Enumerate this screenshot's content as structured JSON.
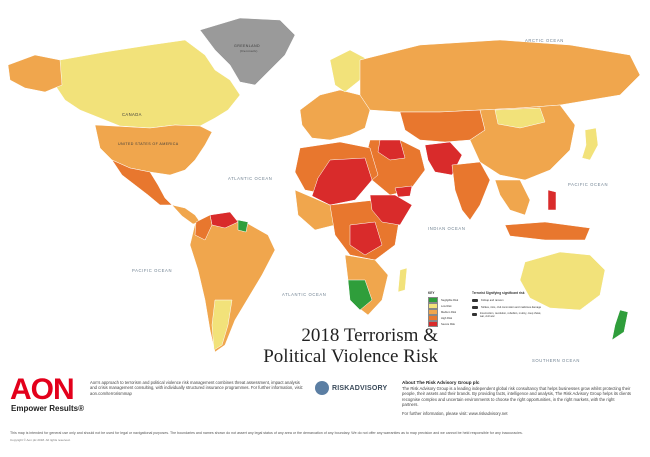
{
  "colors": {
    "negligible": "#2f9e3b",
    "low": "#f2e27a",
    "medium": "#f0a64d",
    "high": "#e8772e",
    "severe": "#d92b2b",
    "greenland": "#9a9a9a",
    "brand": "#e3001b"
  },
  "oceans": {
    "arctic": "ARCTIC OCEAN",
    "atlantic_n": "ATLANTIC OCEAN",
    "atlantic_s": "ATLANTIC OCEAN",
    "pacific_e": "PACIFIC OCEAN",
    "pacific_w": "PACIFIC OCEAN",
    "indian": "INDIAN OCEAN",
    "southern": "SOUTHERN OCEAN"
  },
  "countries": {
    "greenland": "GREENLAND",
    "greenland_sub": "(Denmark)",
    "canada": "CANADA",
    "usa": "UNITED STATES OF AMERICA"
  },
  "key": {
    "title": "KEY",
    "items": [
      {
        "label": "Negligible Risk",
        "color": "#2f9e3b"
      },
      {
        "label": "Low Risk",
        "color": "#f2e27a"
      },
      {
        "label": "Medium Risk",
        "color": "#f0a64d"
      },
      {
        "label": "High Risk",
        "color": "#e8772e"
      },
      {
        "label": "Severe Risk",
        "color": "#d92b2b"
      }
    ]
  },
  "signifiers": {
    "title": "Terrorist Signifying significant risk",
    "items": [
      {
        "label": "Kidnap and ransom"
      },
      {
        "label": "Strikes, riots, civil commotion and malicious damage"
      },
      {
        "label": "Insurrection, revolution, rebellion, mutiny, coup d'etat, war, civil war"
      }
    ]
  },
  "title": {
    "line1_prefix": "2018 ",
    "line1_bold": "Terrorism &",
    "line2": "Political Violence Risk Map"
  },
  "footer": {
    "aon_logo": "AON",
    "aon_tagline": "Empower Results®",
    "aon_text": "Aon's approach to terrorism and political violence risk management combines threat assessment, impact analysis and crisis management consulting, with individually structured insurance programmes. For further information, visit: aon.com/terrorismmap",
    "ra_name": "RISKADVISORY",
    "about_title": "About The Risk Advisory Group plc",
    "about_text": "The Risk Advisory Group is a leading independent global risk consultancy that helps businesses grow whilst protecting their people, their assets and their brands. By providing facts, intelligence and analysis, The Risk Advisory Group helps its clients recognise complex and uncertain environments to choose the right opportunities, in the right markets, with the right partners.",
    "about_web": "For further information, please visit: www.riskadvisory.net",
    "disclaimer": "This map is intended for general use only and should not be used for legal or navigational purposes. The boundaries and names shown do not assert any legal status of any area or the demarcation of any boundary. We do not offer any warranties as to map precision and we cannot be held responsible for any inaccuracies.",
    "copyright": "Copyright © Aon plc 2018. All rights reserved."
  }
}
